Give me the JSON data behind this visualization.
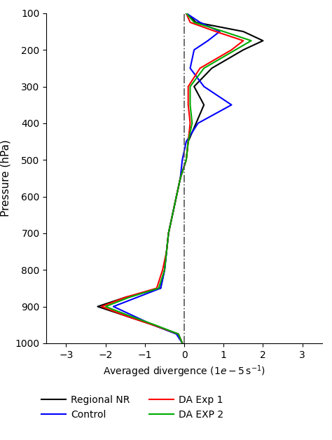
{
  "title": "",
  "xlabel": "Averaged divergence $(1e-5\\,\\mathrm{s}^{-1})$",
  "ylabel": "Pressure (hPa)",
  "xlim": [
    -3.5,
    3.5
  ],
  "ylim": [
    1000,
    100
  ],
  "xticks": [
    -3,
    -2,
    -1,
    0,
    1,
    2,
    3
  ],
  "yticks": [
    100,
    200,
    300,
    400,
    500,
    600,
    700,
    800,
    900,
    1000
  ],
  "pressure_levels": [
    100,
    125,
    150,
    175,
    200,
    250,
    300,
    350,
    400,
    450,
    500,
    550,
    600,
    650,
    700,
    750,
    800,
    850,
    875,
    900,
    925,
    950,
    975,
    1000
  ],
  "regional_nr": [
    0.05,
    0.3,
    1.5,
    2.0,
    1.5,
    0.7,
    0.25,
    0.5,
    0.3,
    0.1,
    0.05,
    -0.1,
    -0.2,
    -0.3,
    -0.4,
    -0.45,
    -0.5,
    -0.6,
    -1.5,
    -2.2,
    -1.5,
    -0.8,
    -0.15,
    -0.05
  ],
  "control": [
    0.05,
    0.4,
    0.9,
    0.6,
    0.25,
    0.15,
    0.5,
    1.2,
    0.35,
    0.05,
    -0.05,
    -0.1,
    -0.2,
    -0.3,
    -0.4,
    -0.45,
    -0.5,
    -0.6,
    -1.2,
    -1.8,
    -1.3,
    -0.8,
    -0.2,
    -0.05
  ],
  "da_exp1": [
    0.05,
    0.15,
    0.8,
    1.5,
    1.2,
    0.4,
    0.1,
    0.1,
    0.15,
    0.1,
    0.05,
    -0.1,
    -0.2,
    -0.3,
    -0.4,
    -0.45,
    -0.55,
    -0.7,
    -1.5,
    -2.1,
    -1.5,
    -0.8,
    -0.15,
    -0.05
  ],
  "da_exp2": [
    0.05,
    0.25,
    1.0,
    1.7,
    1.3,
    0.5,
    0.15,
    0.15,
    0.2,
    0.1,
    0.05,
    -0.1,
    -0.2,
    -0.3,
    -0.4,
    -0.45,
    -0.5,
    -0.65,
    -1.4,
    -2.0,
    -1.4,
    -0.75,
    -0.15,
    -0.05
  ],
  "colors": {
    "regional_nr": "#000000",
    "control": "#0000ff",
    "da_exp1": "#ff0000",
    "da_exp2": "#00aa00"
  },
  "legend_labels": [
    "Regional NR",
    "Control",
    "DA Exp 1",
    "DA EXP 2"
  ],
  "background_color": "#ffffff"
}
